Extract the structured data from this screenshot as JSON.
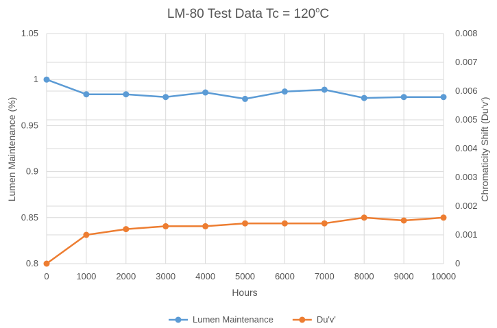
{
  "chart_data": {
    "type": "line",
    "title_main": "LM-80 Test Data Tc = 120",
    "title_degree": "o",
    "title_unit": "C",
    "xlabel": "Hours",
    "ylabel_left": "Lumen Maintenance (%)",
    "ylabel_right": "Chromaticity Shift (Du'v')",
    "x": [
      0,
      1000,
      2000,
      3000,
      4000,
      5000,
      6000,
      7000,
      8000,
      9000,
      10000
    ],
    "x_tick_labels": [
      "0",
      "1000",
      "2000",
      "3000",
      "4000",
      "5000",
      "6000",
      "7000",
      "8000",
      "9000",
      "10000"
    ],
    "ylim_left": [
      0.8,
      1.05
    ],
    "yticks_left": [
      "0.8",
      "0.85",
      "0.9",
      "0.95",
      "1",
      "1.05"
    ],
    "ylim_right": [
      0,
      0.008
    ],
    "yticks_right": [
      "0",
      "0.001",
      "0.002",
      "0.003",
      "0.004",
      "0.005",
      "0.006",
      "0.007",
      "0.008"
    ],
    "grid": true,
    "legend_position": "bottom",
    "series": [
      {
        "name": "Lumen Maintenance",
        "axis": "left",
        "color": "#5b9bd5",
        "values": [
          1.0,
          0.984,
          0.984,
          0.981,
          0.986,
          0.979,
          0.987,
          0.989,
          0.98,
          0.981,
          0.981
        ]
      },
      {
        "name": "Du'v'",
        "axis": "right",
        "color": "#ed7d31",
        "values": [
          0.0,
          0.001,
          0.0012,
          0.0013,
          0.0013,
          0.0014,
          0.0014,
          0.0014,
          0.0016,
          0.0015,
          0.0016
        ]
      }
    ]
  }
}
